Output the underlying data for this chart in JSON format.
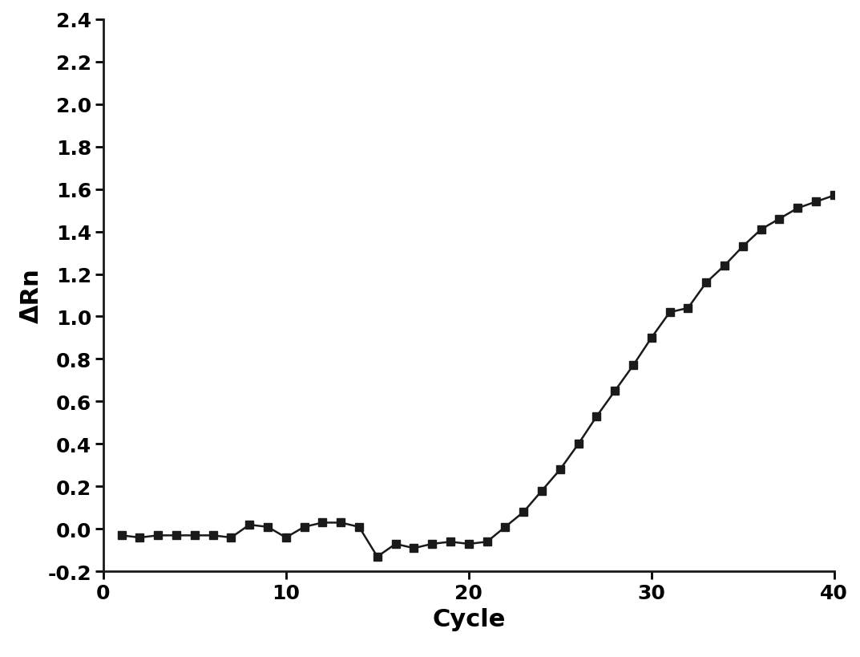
{
  "x": [
    1,
    2,
    3,
    4,
    5,
    6,
    7,
    8,
    9,
    10,
    11,
    12,
    13,
    14,
    15,
    16,
    17,
    18,
    19,
    20,
    21,
    22,
    23,
    24,
    25,
    26,
    27,
    28,
    29,
    30,
    31,
    32,
    33,
    34,
    35,
    36,
    37,
    38,
    39,
    40
  ],
  "y": [
    -0.03,
    -0.04,
    -0.03,
    -0.03,
    -0.03,
    -0.03,
    -0.04,
    0.02,
    0.01,
    -0.04,
    0.01,
    0.03,
    0.03,
    0.01,
    -0.13,
    -0.07,
    -0.09,
    -0.07,
    -0.06,
    -0.07,
    -0.06,
    0.01,
    0.08,
    0.18,
    0.28,
    0.4,
    0.53,
    0.65,
    0.77,
    0.9,
    1.02,
    1.04,
    1.16,
    1.24,
    1.33,
    1.41,
    1.46,
    1.51,
    1.54,
    1.57
  ],
  "xlabel": "Cycle",
  "ylabel": "ΔRn",
  "xlim": [
    0,
    40
  ],
  "ylim": [
    -0.2,
    2.4
  ],
  "yticks": [
    -0.2,
    0.0,
    0.2,
    0.4,
    0.6,
    0.8,
    1.0,
    1.2,
    1.4,
    1.6,
    1.8,
    2.0,
    2.2,
    2.4
  ],
  "xticks": [
    0,
    10,
    20,
    30,
    40
  ],
  "marker": "s",
  "marker_size": 7,
  "line_color": "#1a1a1a",
  "line_width": 1.8,
  "bg_color": "#ffffff",
  "tick_label_fontsize": 18,
  "axis_label_fontsize": 22,
  "font_family": "DejaVu Sans"
}
